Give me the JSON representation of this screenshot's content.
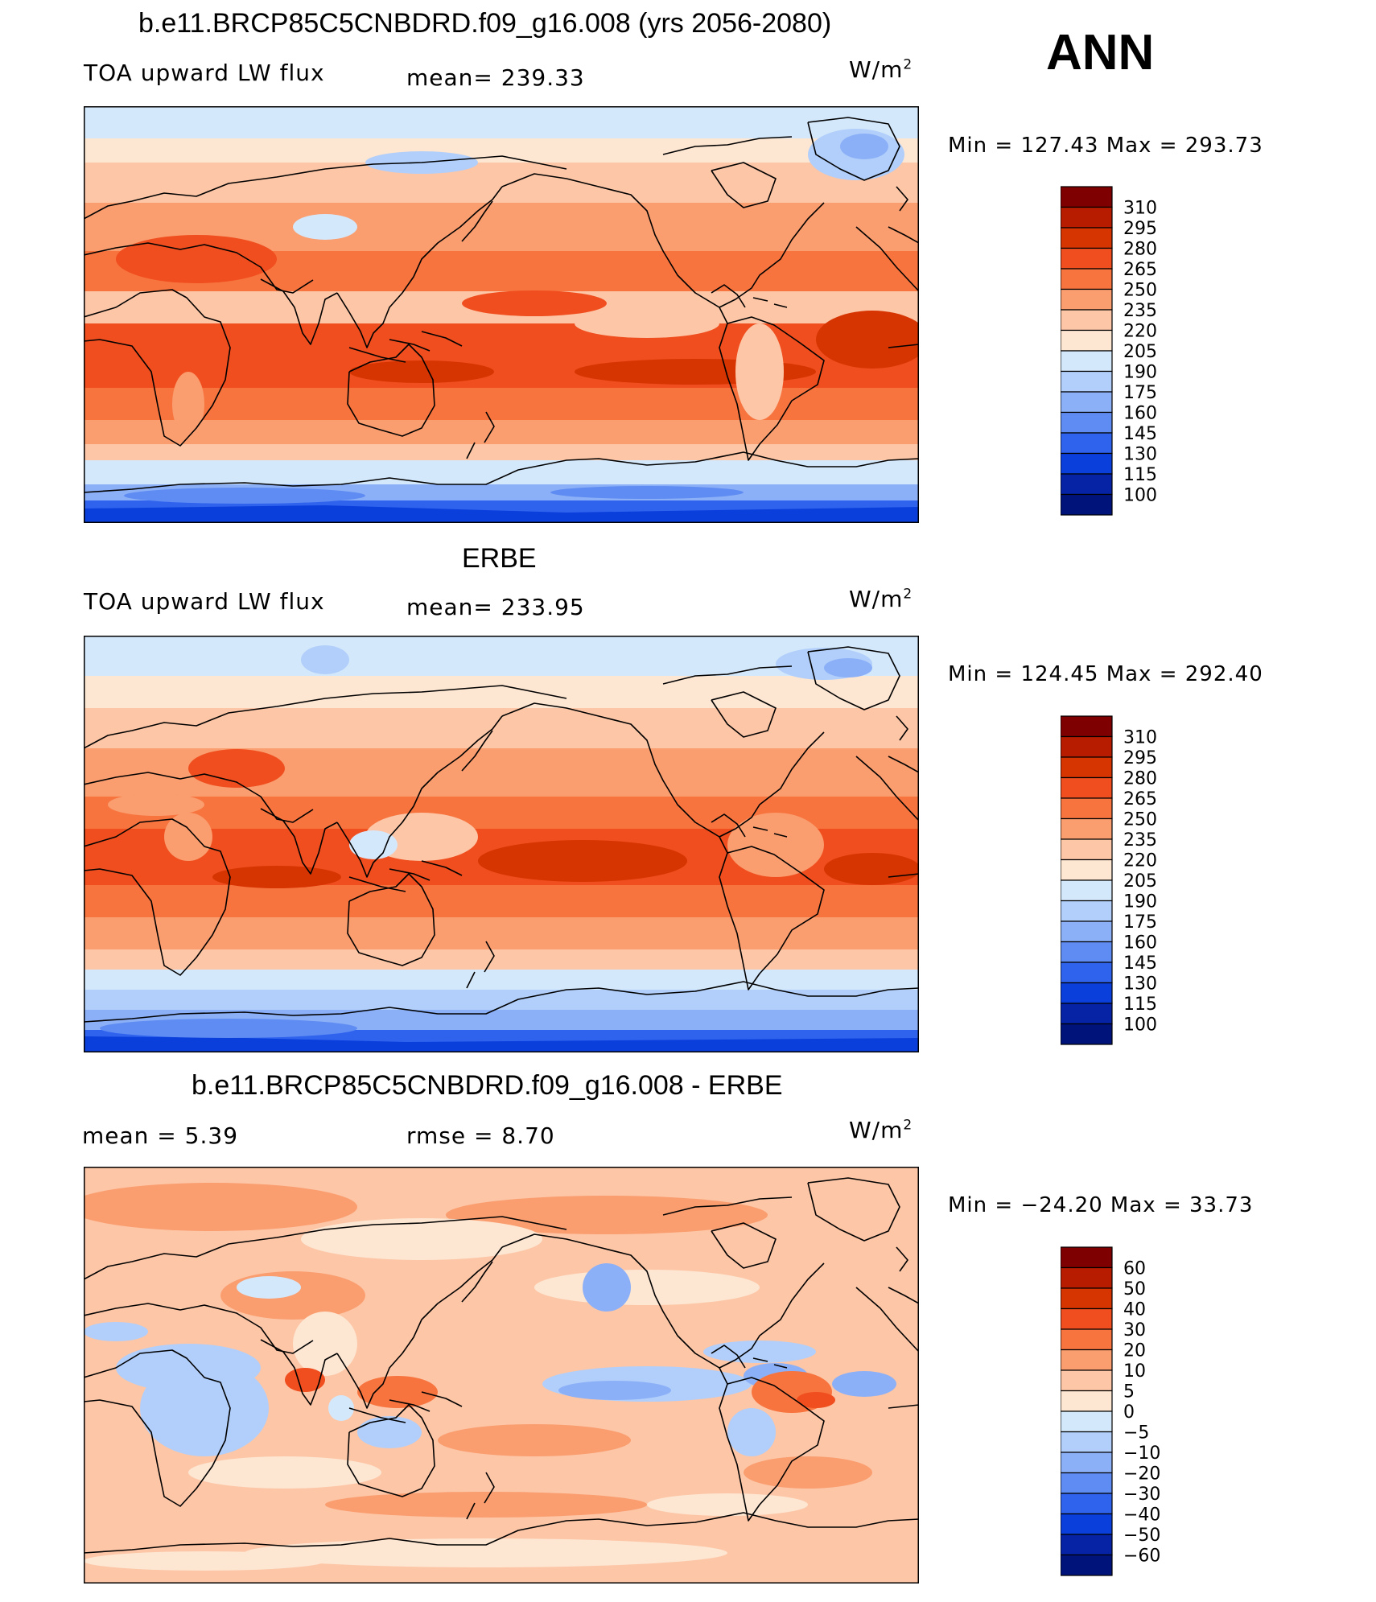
{
  "season": "ANN",
  "panels": [
    {
      "title": "b.e11.BRCP85C5CNBDRD.f09_g16.008 (yrs 2056-2080)",
      "variable": "TOA upward LW flux",
      "stat1": "mean=  239.33",
      "stat2": "",
      "units": "W/m",
      "units_sup": "2",
      "minmax": "Min  =  127.43  Max  =  293.73",
      "kind": "model",
      "colorbar": {
        "levels": [
          "310",
          "295",
          "280",
          "265",
          "250",
          "235",
          "220",
          "205",
          "190",
          "175",
          "160",
          "145",
          "130",
          "115",
          "100"
        ],
        "colors": [
          "#7f0000",
          "#b81c00",
          "#d63400",
          "#f04e1e",
          "#f7743f",
          "#fa9d6f",
          "#fdc6a7",
          "#fde6d2",
          "#d4e8fb",
          "#b1cffa",
          "#8cb0f7",
          "#5f8cf2",
          "#2f63ee",
          "#0b3fdb",
          "#0623a6",
          "#00137a"
        ]
      }
    },
    {
      "title": "ERBE",
      "variable": "TOA upward LW flux",
      "stat1": "mean=  233.95",
      "stat2": "",
      "units": "W/m",
      "units_sup": "2",
      "minmax": "Min  =  124.45  Max  =  292.40",
      "kind": "obs",
      "colorbar": {
        "levels": [
          "310",
          "295",
          "280",
          "265",
          "250",
          "235",
          "220",
          "205",
          "190",
          "175",
          "160",
          "145",
          "130",
          "115",
          "100"
        ],
        "colors": [
          "#7f0000",
          "#b81c00",
          "#d63400",
          "#f04e1e",
          "#f7743f",
          "#fa9d6f",
          "#fdc6a7",
          "#fde6d2",
          "#d4e8fb",
          "#b1cffa",
          "#8cb0f7",
          "#5f8cf2",
          "#2f63ee",
          "#0b3fdb",
          "#0623a6",
          "#00137a"
        ]
      }
    },
    {
      "title": "b.e11.BRCP85C5CNBDRD.f09_g16.008 - ERBE",
      "variable": "mean  =      5.39",
      "stat1": "rmse  =      8.70",
      "stat2": "",
      "units": "W/m",
      "units_sup": "2",
      "minmax": "Min  =  −24.20  Max  =     33.73",
      "kind": "diff",
      "colorbar": {
        "levels": [
          "60",
          "50",
          "40",
          "30",
          "20",
          "10",
          "5",
          "0",
          "−5",
          "−10",
          "−20",
          "−30",
          "−40",
          "−50",
          "−60"
        ],
        "colors": [
          "#7f0000",
          "#b81c00",
          "#d63400",
          "#f04e1e",
          "#f7743f",
          "#fa9d6f",
          "#fdc6a7",
          "#fde6d2",
          "#d4e8fb",
          "#b1cffa",
          "#8cb0f7",
          "#5f8cf2",
          "#2f63ee",
          "#0b3fdb",
          "#0623a6",
          "#00137a"
        ]
      }
    }
  ]
}
